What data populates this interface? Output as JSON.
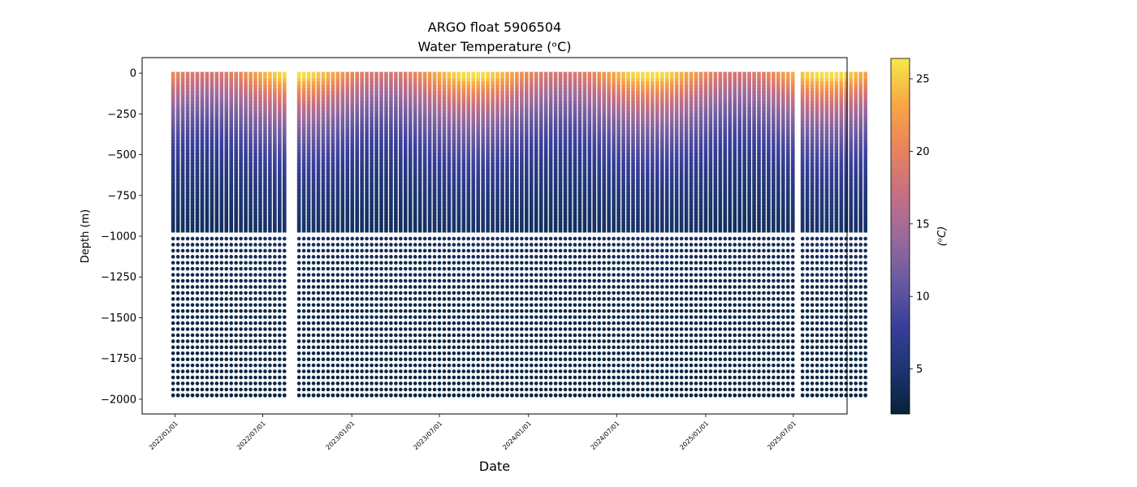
{
  "chart_data": {
    "type": "scatter",
    "title": "ARGO float 5906504",
    "subtitle": "Water Temperature (ᵒC)",
    "xlabel": "Date",
    "ylabel": "Depth (m)",
    "x_tick_labels": [
      "2022/01/01",
      "2022/07/01",
      "2023/01/01",
      "2023/07/01",
      "2024/01/01",
      "2024/07/01",
      "2025/01/01",
      "2025/07/01"
    ],
    "x_tick_dates": [
      "2022-01-01",
      "2022-07-01",
      "2023-01-01",
      "2023-07-01",
      "2024-01-01",
      "2024-07-01",
      "2025-01-01",
      "2025-07-01"
    ],
    "xlim": [
      "2021-10-25",
      "2025-10-20"
    ],
    "ylim": [
      -2090,
      95
    ],
    "y_ticks": [
      0,
      -250,
      -500,
      -750,
      -1000,
      -1250,
      -1500,
      -1750,
      -2000
    ],
    "colorbar": {
      "label": "(ᵒC)",
      "range": [
        1.9,
        26.4
      ],
      "ticks": [
        5,
        10,
        15,
        20,
        25
      ],
      "colormap": "thermal",
      "stops": [
        "#04233a",
        "#1c3570",
        "#3a3f9a",
        "#6a5aa0",
        "#9a6a9c",
        "#c87080",
        "#e9845c",
        "#f8a843",
        "#f5e94a"
      ]
    },
    "profiles": {
      "first_date": "2021-12-28",
      "cycle_days": 10,
      "cycles": 144,
      "missing_cycles": [
        24,
        25,
        129
      ],
      "surface_temp_range": [
        18,
        26
      ],
      "deep_temp": 2.5,
      "dense_depth_range": [
        0,
        -980
      ],
      "sparse_depth_range": [
        -1000,
        -1970
      ]
    }
  },
  "colors": {
    "axis": "#000000",
    "background": "#ffffff"
  }
}
